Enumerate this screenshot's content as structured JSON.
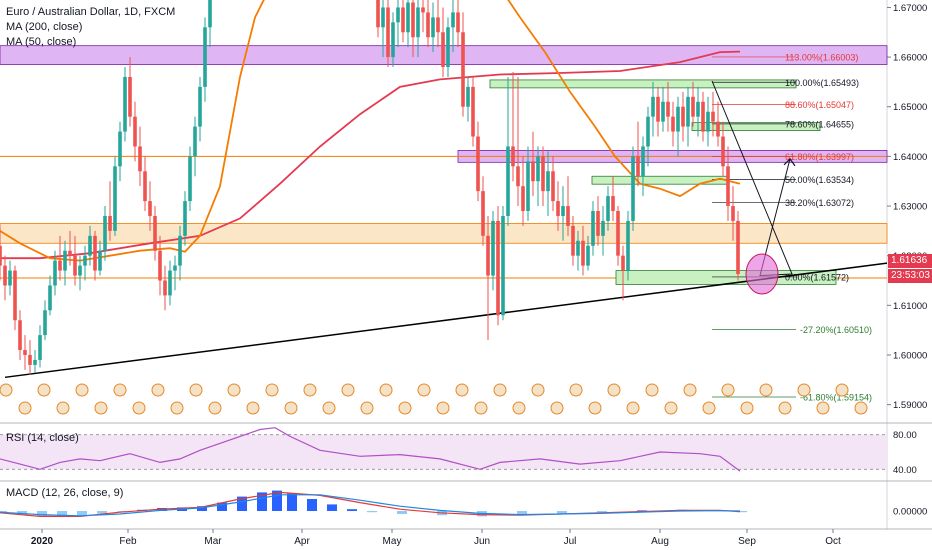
{
  "chart_data": {
    "type": "candlestick",
    "title": "Euro / Australian Dollar, 1D, FXCM",
    "indicators": [
      "MA (200, close)",
      "MA (50, close)"
    ],
    "x_ticks": [
      "2020",
      "Feb",
      "Mar",
      "Apr",
      "May",
      "Jun",
      "Jul",
      "Aug",
      "Sep",
      "Oct"
    ],
    "y_ticks": [
      "1.67000",
      "1.66000",
      "1.65000",
      "1.64000",
      "1.63000",
      "1.62000",
      "1.61000",
      "1.60000",
      "1.59000"
    ],
    "ylim": [
      1.5865,
      1.6715
    ],
    "last_price": "1.61636",
    "countdown": "23:53:03",
    "fib_levels": [
      {
        "label": "113.00%(1.66003)",
        "value": 1.66003,
        "color": "#e53935"
      },
      {
        "label": "100.00%(1.65493)",
        "value": 1.65493,
        "color": "#131722"
      },
      {
        "label": "88.60%(1.65047)",
        "value": 1.65047,
        "color": "#e53935"
      },
      {
        "label": "78.60%(1.64655)",
        "value": 1.64655,
        "color": "#131722"
      },
      {
        "label": "61.80%(1.63997)",
        "value": 1.63997,
        "color": "#e53935"
      },
      {
        "label": "50.00%(1.63534)",
        "value": 1.63534,
        "color": "#131722"
      },
      {
        "label": "38.20%(1.63072)",
        "value": 1.63072,
        "color": "#131722"
      },
      {
        "label": "0.00%(1.61572)",
        "value": 1.61572,
        "color": "#131722"
      },
      {
        "label": "-27.20%(1.60510)",
        "value": 1.6051,
        "color": "#2e7d32"
      },
      {
        "label": "-61.80%(1.59154)",
        "value": 1.59154,
        "color": "#2e7d32"
      }
    ],
    "ma200": [
      [
        0,
        1.6195
      ],
      [
        40,
        1.6195
      ],
      [
        90,
        1.6205
      ],
      [
        150,
        1.6225
      ],
      [
        200,
        1.624
      ],
      [
        240,
        1.6275
      ],
      [
        280,
        1.6345
      ],
      [
        320,
        1.642
      ],
      [
        360,
        1.6485
      ],
      [
        400,
        1.654
      ],
      [
        440,
        1.6555
      ],
      [
        500,
        1.6565
      ],
      [
        560,
        1.6568
      ],
      [
        620,
        1.6572
      ],
      [
        680,
        1.659
      ],
      [
        720,
        1.661
      ],
      [
        740,
        1.6611
      ]
    ],
    "ma50": [
      [
        0,
        1.625
      ],
      [
        20,
        1.6225
      ],
      [
        50,
        1.6195
      ],
      [
        80,
        1.619
      ],
      [
        110,
        1.62
      ],
      [
        140,
        1.621
      ],
      [
        170,
        1.6215
      ],
      [
        185,
        1.6208
      ],
      [
        200,
        1.624
      ],
      [
        220,
        1.634
      ],
      [
        240,
        1.656
      ],
      [
        255,
        1.668
      ],
      [
        270,
        1.674
      ],
      [
        500,
        1.674
      ],
      [
        520,
        1.668
      ],
      [
        545,
        1.661
      ],
      [
        570,
        1.653
      ],
      [
        595,
        1.646
      ],
      [
        615,
        1.64
      ],
      [
        640,
        1.6345
      ],
      [
        660,
        1.6335
      ],
      [
        680,
        1.632
      ],
      [
        700,
        1.6345
      ],
      [
        720,
        1.6355
      ],
      [
        740,
        1.6345
      ]
    ],
    "trendline": {
      "from": [
        5,
        1.5955
      ],
      "to": [
        887,
        1.6185
      ]
    },
    "candles": [
      [
        0,
        1.622,
        1.626,
        1.615,
        1.618
      ],
      [
        5,
        1.618,
        1.62,
        1.611,
        1.614
      ],
      [
        10,
        1.614,
        1.619,
        1.612,
        1.617
      ],
      [
        15,
        1.617,
        1.618,
        1.605,
        1.607
      ],
      [
        20,
        1.607,
        1.609,
        1.599,
        1.601
      ],
      [
        25,
        1.601,
        1.604,
        1.597,
        1.6
      ],
      [
        30,
        1.6,
        1.603,
        1.596,
        1.598
      ],
      [
        35,
        1.598,
        1.601,
        1.5965,
        1.599
      ],
      [
        40,
        1.599,
        1.606,
        1.5975,
        1.604
      ],
      [
        45,
        1.604,
        1.611,
        1.603,
        1.609
      ],
      [
        50,
        1.609,
        1.616,
        1.608,
        1.614
      ],
      [
        55,
        1.614,
        1.621,
        1.612,
        1.619
      ],
      [
        60,
        1.619,
        1.624,
        1.615,
        1.617
      ],
      [
        65,
        1.617,
        1.623,
        1.614,
        1.621
      ],
      [
        70,
        1.621,
        1.625,
        1.618,
        1.62
      ],
      [
        75,
        1.62,
        1.624,
        1.614,
        1.616
      ],
      [
        80,
        1.616,
        1.62,
        1.613,
        1.618
      ],
      [
        85,
        1.618,
        1.622,
        1.615,
        1.62
      ],
      [
        90,
        1.62,
        1.626,
        1.618,
        1.624
      ],
      [
        95,
        1.624,
        1.625,
        1.615,
        1.617
      ],
      [
        100,
        1.617,
        1.623,
        1.616,
        1.621
      ],
      [
        105,
        1.621,
        1.63,
        1.619,
        1.628
      ],
      [
        110,
        1.628,
        1.635,
        1.623,
        1.625
      ],
      [
        115,
        1.625,
        1.64,
        1.624,
        1.638
      ],
      [
        120,
        1.638,
        1.647,
        1.635,
        1.645
      ],
      [
        125,
        1.645,
        1.658,
        1.643,
        1.656
      ],
      [
        130,
        1.656,
        1.66,
        1.646,
        1.648
      ],
      [
        135,
        1.648,
        1.651,
        1.639,
        1.642
      ],
      [
        140,
        1.642,
        1.646,
        1.634,
        1.637
      ],
      [
        145,
        1.637,
        1.64,
        1.629,
        1.631
      ],
      [
        150,
        1.631,
        1.635,
        1.625,
        1.628
      ],
      [
        155,
        1.628,
        1.63,
        1.619,
        1.621
      ],
      [
        160,
        1.621,
        1.624,
        1.612,
        1.615
      ],
      [
        165,
        1.615,
        1.618,
        1.609,
        1.612
      ],
      [
        170,
        1.612,
        1.619,
        1.61,
        1.617
      ],
      [
        175,
        1.617,
        1.62,
        1.613,
        1.618
      ],
      [
        180,
        1.618,
        1.626,
        1.615,
        1.624
      ],
      [
        185,
        1.624,
        1.633,
        1.622,
        1.631
      ],
      [
        190,
        1.631,
        1.642,
        1.629,
        1.64
      ],
      [
        195,
        1.64,
        1.648,
        1.636,
        1.646
      ],
      [
        200,
        1.646,
        1.656,
        1.643,
        1.654
      ],
      [
        205,
        1.654,
        1.668,
        1.651,
        1.666
      ],
      [
        210,
        1.666,
        1.674,
        1.662,
        1.672
      ],
      [
        378,
        1.672,
        1.674,
        1.664,
        1.666
      ],
      [
        383,
        1.666,
        1.672,
        1.66,
        1.67
      ],
      [
        388,
        1.67,
        1.673,
        1.658,
        1.66
      ],
      [
        393,
        1.66,
        1.669,
        1.658,
        1.667
      ],
      [
        398,
        1.667,
        1.673,
        1.662,
        1.67
      ],
      [
        403,
        1.67,
        1.672,
        1.663,
        1.665
      ],
      [
        408,
        1.665,
        1.674,
        1.662,
        1.671
      ],
      [
        413,
        1.671,
        1.673,
        1.66,
        1.664
      ],
      [
        418,
        1.664,
        1.672,
        1.66,
        1.67
      ],
      [
        423,
        1.67,
        1.674,
        1.665,
        1.669
      ],
      [
        428,
        1.669,
        1.672,
        1.662,
        1.664
      ],
      [
        433,
        1.664,
        1.671,
        1.661,
        1.668
      ],
      [
        438,
        1.668,
        1.673,
        1.662,
        1.665
      ],
      [
        443,
        1.665,
        1.67,
        1.656,
        1.658
      ],
      [
        448,
        1.658,
        1.668,
        1.656,
        1.666
      ],
      [
        453,
        1.666,
        1.672,
        1.661,
        1.669
      ],
      [
        458,
        1.669,
        1.674,
        1.662,
        1.665
      ],
      [
        463,
        1.665,
        1.669,
        1.648,
        1.65
      ],
      [
        468,
        1.65,
        1.656,
        1.647,
        1.654
      ],
      [
        473,
        1.654,
        1.656,
        1.642,
        1.644
      ],
      [
        478,
        1.644,
        1.647,
        1.631,
        1.633
      ],
      [
        483,
        1.633,
        1.636,
        1.622,
        1.624
      ],
      [
        488,
        1.624,
        1.628,
        1.603,
        1.616
      ],
      [
        493,
        1.616,
        1.629,
        1.613,
        1.627
      ],
      [
        498,
        1.627,
        1.63,
        1.606,
        1.608
      ],
      [
        503,
        1.608,
        1.63,
        1.607,
        1.628
      ],
      [
        508,
        1.628,
        1.656,
        1.626,
        1.642
      ],
      [
        513,
        1.642,
        1.657,
        1.635,
        1.638
      ],
      [
        518,
        1.638,
        1.656,
        1.63,
        1.634
      ],
      [
        523,
        1.634,
        1.64,
        1.626,
        1.629
      ],
      [
        528,
        1.629,
        1.642,
        1.627,
        1.639
      ],
      [
        533,
        1.639,
        1.645,
        1.632,
        1.635
      ],
      [
        538,
        1.635,
        1.642,
        1.63,
        1.64
      ],
      [
        543,
        1.64,
        1.642,
        1.63,
        1.633
      ],
      [
        548,
        1.633,
        1.641,
        1.628,
        1.637
      ],
      [
        553,
        1.637,
        1.64,
        1.629,
        1.631
      ],
      [
        558,
        1.631,
        1.635,
        1.625,
        1.628
      ],
      [
        563,
        1.628,
        1.634,
        1.623,
        1.63
      ],
      [
        568,
        1.63,
        1.636,
        1.624,
        1.626
      ],
      [
        573,
        1.626,
        1.628,
        1.618,
        1.62
      ],
      [
        578,
        1.62,
        1.625,
        1.617,
        1.623
      ],
      [
        583,
        1.623,
        1.626,
        1.616,
        1.618
      ],
      [
        588,
        1.618,
        1.624,
        1.617,
        1.622
      ],
      [
        593,
        1.622,
        1.631,
        1.62,
        1.629
      ],
      [
        598,
        1.629,
        1.632,
        1.622,
        1.624
      ],
      [
        603,
        1.624,
        1.63,
        1.62,
        1.627
      ],
      [
        608,
        1.627,
        1.634,
        1.625,
        1.632
      ],
      [
        613,
        1.632,
        1.636,
        1.627,
        1.629
      ],
      [
        618,
        1.629,
        1.63,
        1.618,
        1.62
      ],
      [
        623,
        1.62,
        1.622,
        1.611,
        1.617
      ],
      [
        628,
        1.617,
        1.629,
        1.615,
        1.627
      ],
      [
        633,
        1.627,
        1.642,
        1.625,
        1.64
      ],
      [
        638,
        1.64,
        1.647,
        1.634,
        1.636
      ],
      [
        643,
        1.636,
        1.644,
        1.632,
        1.642
      ],
      [
        648,
        1.642,
        1.65,
        1.638,
        1.648
      ],
      [
        653,
        1.648,
        1.655,
        1.644,
        1.652
      ],
      [
        658,
        1.652,
        1.654,
        1.644,
        1.647
      ],
      [
        663,
        1.647,
        1.654,
        1.645,
        1.651
      ],
      [
        668,
        1.651,
        1.655,
        1.645,
        1.648
      ],
      [
        673,
        1.648,
        1.651,
        1.642,
        1.645
      ],
      [
        678,
        1.645,
        1.652,
        1.64,
        1.65
      ],
      [
        683,
        1.65,
        1.653,
        1.643,
        1.646
      ],
      [
        688,
        1.646,
        1.654,
        1.642,
        1.652
      ],
      [
        693,
        1.652,
        1.655,
        1.646,
        1.648
      ],
      [
        698,
        1.648,
        1.654,
        1.644,
        1.651
      ],
      [
        703,
        1.651,
        1.653,
        1.643,
        1.645
      ],
      [
        708,
        1.645,
        1.652,
        1.642,
        1.649
      ],
      [
        713,
        1.649,
        1.653,
        1.644,
        1.647
      ],
      [
        718,
        1.647,
        1.651,
        1.642,
        1.644
      ],
      [
        723,
        1.644,
        1.647,
        1.636,
        1.638
      ],
      [
        728,
        1.638,
        1.642,
        1.627,
        1.63
      ],
      [
        733,
        1.63,
        1.634,
        1.623,
        1.627
      ],
      [
        738,
        1.627,
        1.629,
        1.615,
        1.6163
      ]
    ],
    "rsi": {
      "title": "RSI (14, close)",
      "ylim": [
        30,
        90
      ],
      "y_ticks": [
        "80.00",
        "40.00"
      ],
      "values": [
        [
          0,
          52
        ],
        [
          20,
          46
        ],
        [
          40,
          40
        ],
        [
          60,
          48
        ],
        [
          80,
          52
        ],
        [
          100,
          50
        ],
        [
          130,
          58
        ],
        [
          160,
          48
        ],
        [
          180,
          52
        ],
        [
          200,
          62
        ],
        [
          230,
          74
        ],
        [
          260,
          86
        ],
        [
          275,
          88
        ],
        [
          290,
          78
        ],
        [
          320,
          62
        ],
        [
          360,
          55
        ],
        [
          400,
          57
        ],
        [
          440,
          52
        ],
        [
          480,
          40
        ],
        [
          500,
          48
        ],
        [
          540,
          52
        ],
        [
          580,
          46
        ],
        [
          620,
          50
        ],
        [
          660,
          60
        ],
        [
          700,
          58
        ],
        [
          720,
          55
        ],
        [
          740,
          38
        ]
      ]
    },
    "macd": {
      "title": "MACD (12, 26, close, 9)",
      "y_tick": "0.00000",
      "hist": [
        [
          0,
          -0.0004
        ],
        [
          20,
          -0.001
        ],
        [
          40,
          -0.0016
        ],
        [
          60,
          -0.002
        ],
        [
          80,
          -0.0016
        ],
        [
          100,
          -0.0008
        ],
        [
          120,
          -0.0002
        ],
        [
          140,
          0.0004
        ],
        [
          160,
          0.001
        ],
        [
          180,
          0.0012
        ],
        [
          200,
          0.0016
        ],
        [
          220,
          0.0028
        ],
        [
          240,
          0.0048
        ],
        [
          260,
          0.0062
        ],
        [
          275,
          0.0068
        ],
        [
          290,
          0.0058
        ],
        [
          310,
          0.004
        ],
        [
          330,
          0.0022
        ],
        [
          350,
          0.0006
        ],
        [
          370,
          -0.0004
        ],
        [
          400,
          -0.001
        ],
        [
          440,
          -0.0014
        ],
        [
          480,
          -0.0018
        ],
        [
          520,
          -0.0012
        ],
        [
          560,
          -0.0008
        ],
        [
          600,
          -0.0004
        ],
        [
          640,
          0.0002
        ],
        [
          680,
          0.0004
        ],
        [
          720,
          0.0002
        ],
        [
          740,
          -0.0004
        ]
      ],
      "macd_line": [
        [
          0,
          -0.0006
        ],
        [
          40,
          -0.0018
        ],
        [
          80,
          -0.0018
        ],
        [
          120,
          -0.0004
        ],
        [
          160,
          0.0006
        ],
        [
          200,
          0.0012
        ],
        [
          240,
          0.004
        ],
        [
          280,
          0.0062
        ],
        [
          320,
          0.0052
        ],
        [
          360,
          0.0028
        ],
        [
          400,
          0.0006
        ],
        [
          440,
          -0.0006
        ],
        [
          480,
          -0.0012
        ],
        [
          520,
          -0.0014
        ],
        [
          560,
          -0.001
        ],
        [
          600,
          -0.0006
        ],
        [
          640,
          -0.0002
        ],
        [
          680,
          0.0002
        ],
        [
          720,
          0.0002
        ],
        [
          740,
          -0.0002
        ]
      ],
      "signal_line": [
        [
          0,
          -0.0004
        ],
        [
          40,
          -0.0012
        ],
        [
          80,
          -0.0016
        ],
        [
          120,
          -0.001
        ],
        [
          160,
          0.0002
        ],
        [
          200,
          0.001
        ],
        [
          240,
          0.003
        ],
        [
          280,
          0.0054
        ],
        [
          320,
          0.0054
        ],
        [
          360,
          0.0036
        ],
        [
          400,
          0.0016
        ],
        [
          440,
          0.0002
        ],
        [
          480,
          -0.0008
        ],
        [
          520,
          -0.0012
        ],
        [
          560,
          -0.001
        ],
        [
          600,
          -0.0008
        ],
        [
          640,
          -0.0004
        ],
        [
          680,
          0.0
        ],
        [
          720,
          0.0001
        ],
        [
          740,
          0.0
        ]
      ]
    }
  },
  "colors": {
    "up": "#26a69a",
    "down": "#ef5350",
    "ma200": "#e53950",
    "ma50": "#f57c00",
    "trend": "#000000",
    "zone_purple": "#d9a8f2",
    "zone_orange": "#fbe3c2",
    "zone_green": "#c8f0c0",
    "rsi": "#b04fc8",
    "macd_hist": "#2962ff",
    "macd_line": "#e53935",
    "signal_line": "#1e88e5"
  }
}
